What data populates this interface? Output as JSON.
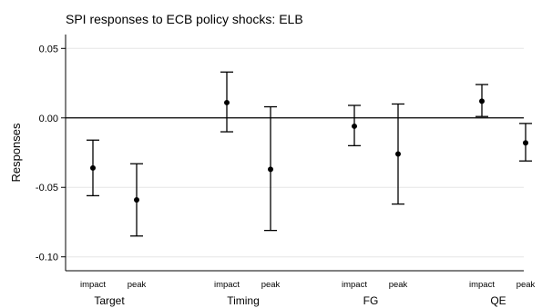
{
  "chart_data": {
    "type": "scatter",
    "title": "SPI responses to ECB policy shocks: ELB",
    "ylabel": "Responses",
    "xlabel": "",
    "ylim": [
      -0.11,
      0.06
    ],
    "yticks": [
      0.05,
      0.0,
      -0.05,
      -0.1
    ],
    "ytick_labels": [
      "0.05",
      "0.00",
      "-0.05",
      "-0.10"
    ],
    "grid": true,
    "reference_line": 0.0,
    "groups": [
      "Target",
      "Timing",
      "FG",
      "QE"
    ],
    "subcategories": [
      "impact",
      "peak"
    ],
    "series": [
      {
        "values": [
          {
            "group": "Target",
            "sub": "impact",
            "y": -0.036,
            "low": -0.056,
            "high": -0.016
          },
          {
            "group": "Target",
            "sub": "peak",
            "y": -0.059,
            "low": -0.085,
            "high": -0.033
          },
          {
            "group": "Timing",
            "sub": "impact",
            "y": 0.011,
            "low": -0.01,
            "high": 0.033
          },
          {
            "group": "Timing",
            "sub": "peak",
            "y": -0.037,
            "low": -0.081,
            "high": 0.008
          },
          {
            "group": "FG",
            "sub": "impact",
            "y": -0.006,
            "low": -0.02,
            "high": 0.009
          },
          {
            "group": "FG",
            "sub": "peak",
            "y": -0.026,
            "low": -0.062,
            "high": 0.01
          },
          {
            "group": "QE",
            "sub": "impact",
            "y": 0.012,
            "low": 0.001,
            "high": 0.024
          },
          {
            "group": "QE",
            "sub": "peak",
            "y": -0.018,
            "low": -0.031,
            "high": -0.004
          }
        ]
      }
    ]
  }
}
